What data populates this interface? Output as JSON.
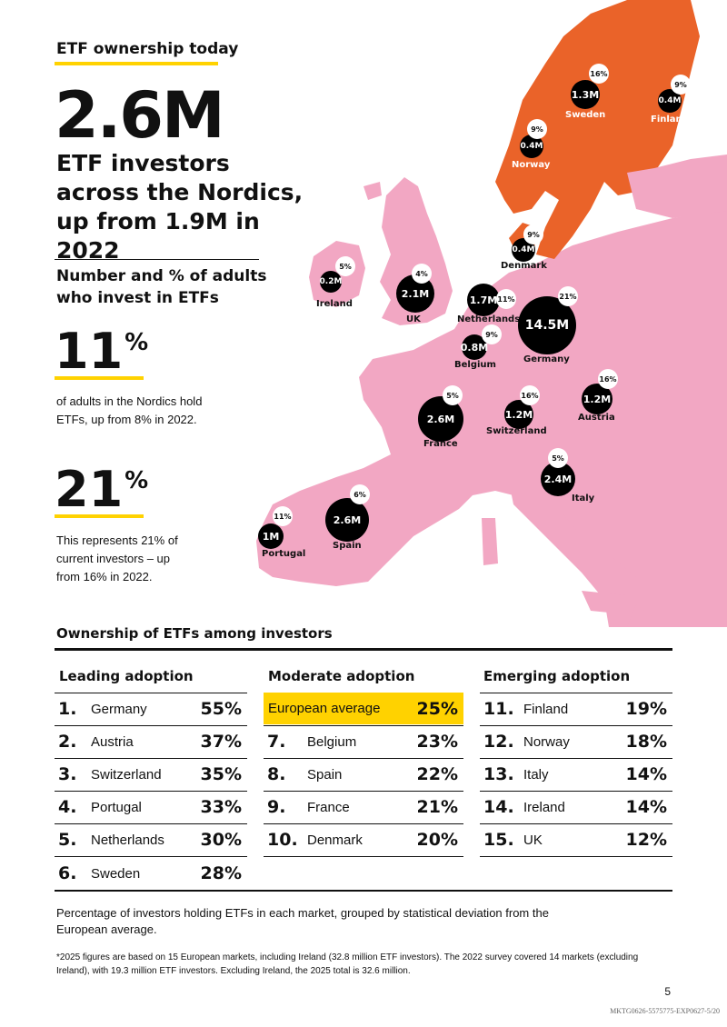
{
  "header": {
    "section_label": "ETF ownership today",
    "big_number": "2.6M",
    "subhead": "ETF investors across the Nordics, up from 1.9M in 2022"
  },
  "metrics": {
    "title": "Number and % of adults who invest in ETFs",
    "stat1": {
      "value": "11",
      "unit": "%",
      "desc": "of adults in the Nordics hold ETFs, up from 8% in 2022."
    },
    "stat2": {
      "value": "21",
      "unit": "%",
      "desc": "This represents 21% of current investors – up from 16% in 2022."
    }
  },
  "map": {
    "colors": {
      "nordics": "#ea6329",
      "europe": "#f2a7c3",
      "bubble": "#000000"
    },
    "countries": [
      {
        "name": "Sweden",
        "investors": "1.3M",
        "pct": "16%"
      },
      {
        "name": "Finland",
        "investors": "0.4M",
        "pct": "9%"
      },
      {
        "name": "Norway",
        "investors": "0.4M",
        "pct": "9%"
      },
      {
        "name": "Denmark",
        "investors": "0.4M",
        "pct": "9%"
      },
      {
        "name": "Ireland",
        "investors": "0.2M",
        "pct": "5%"
      },
      {
        "name": "UK",
        "investors": "2.1M",
        "pct": "4%"
      },
      {
        "name": "Netherlands",
        "investors": "1.7M",
        "pct": "11%"
      },
      {
        "name": "Germany",
        "investors": "14.5M",
        "pct": "21%"
      },
      {
        "name": "Belgium",
        "investors": "0.8M",
        "pct": "9%"
      },
      {
        "name": "Austria",
        "investors": "1.2M",
        "pct": "16%"
      },
      {
        "name": "France",
        "investors": "2.6M",
        "pct": "5%"
      },
      {
        "name": "Switzerland",
        "investors": "1.2M",
        "pct": "16%"
      },
      {
        "name": "Italy",
        "investors": "2.4M",
        "pct": "5%"
      },
      {
        "name": "Spain",
        "investors": "2.6M",
        "pct": "6%"
      },
      {
        "name": "Portugal",
        "investors": "1M",
        "pct": "11%"
      }
    ]
  },
  "ownership": {
    "title": "Ownership of ETFs among investors",
    "columns": [
      {
        "heading": "Leading adoption",
        "rows": [
          {
            "rank": "1.",
            "name": "Germany",
            "value": "55%"
          },
          {
            "rank": "2.",
            "name": "Austria",
            "value": "37%"
          },
          {
            "rank": "3.",
            "name": "Switzerland",
            "value": "35%"
          },
          {
            "rank": "4.",
            "name": "Portugal",
            "value": "33%"
          },
          {
            "rank": "5.",
            "name": "Netherlands",
            "value": "30%"
          },
          {
            "rank": "6.",
            "name": "Sweden",
            "value": "28%"
          }
        ]
      },
      {
        "heading": "Moderate adoption",
        "highlight": {
          "name": "European average",
          "value": "25%",
          "color": "#ffd200"
        },
        "rows": [
          {
            "rank": "7.",
            "name": "Belgium",
            "value": "23%"
          },
          {
            "rank": "8.",
            "name": "Spain",
            "value": "22%"
          },
          {
            "rank": "9.",
            "name": "France",
            "value": "21%"
          },
          {
            "rank": "10.",
            "name": "Denmark",
            "value": "20%"
          }
        ]
      },
      {
        "heading": "Emerging adoption",
        "rows": [
          {
            "rank": "11.",
            "name": "Finland",
            "value": "19%"
          },
          {
            "rank": "12.",
            "name": "Norway",
            "value": "18%"
          },
          {
            "rank": "13.",
            "name": "Italy",
            "value": "14%"
          },
          {
            "rank": "14.",
            "name": "Ireland",
            "value": "14%"
          },
          {
            "rank": "15.",
            "name": "UK",
            "value": "12%"
          }
        ]
      }
    ],
    "caption": "Percentage of investors holding ETFs in each market, grouped by statistical deviation from the European average."
  },
  "footnote": "*2025 figures are based on 15 European markets, including Ireland (32.8 million ETF investors). The 2022 survey covered 14 markets (excluding Ireland), with 19.3 million ETF investors. Excluding Ireland, the 2025 total is 32.6 million.",
  "page_number": "5",
  "doc_code": "MKTG0626-5575775-EXP0627-5/20"
}
